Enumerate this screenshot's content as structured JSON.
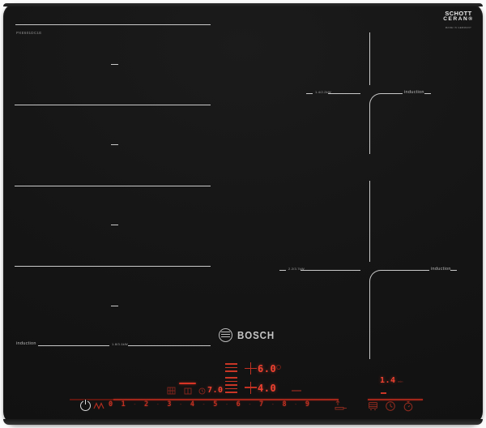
{
  "surface": {
    "model_number": "PXE601DC1E",
    "glass_logo": {
      "line1": "SCHOTT",
      "line2": "CERAN®",
      "subline": "MADE IN GERMANY"
    },
    "bosch_logo_text": "BOSCH"
  },
  "zones": {
    "flex_left": {
      "induction_label": "induction",
      "power_label": "1.8/3.1kW"
    },
    "back_right": {
      "induction_label": "induction",
      "power_label": "1.4/2.2kW"
    },
    "front_right": {
      "induction_label": "induction",
      "power_label": "2.2/3.7kW"
    }
  },
  "control_panel": {
    "power_levels": [
      "0",
      "1",
      "2",
      "3",
      "4",
      "5",
      "6",
      "7",
      "8",
      "9"
    ],
    "level_separator": "-",
    "displays": {
      "flex_rear_level": "6.0",
      "flex_front_level": "4.0",
      "aux_level": "7.0",
      "timer_value": "1.4",
      "timer_unit": "min"
    },
    "icons": [
      "standby-power-icon",
      "wipe-protection-icon",
      "pan-transfer-icon",
      "pot-icon",
      "clock-timer-icon",
      "stopwatch-icon",
      "grid-function-icon",
      "keep-warm-bar",
      "frame-function-icon",
      "mini-clock-icon"
    ]
  },
  "colors": {
    "led_bright": "#ee4130",
    "led_dim": "#7e241b",
    "zone_line": "#c9c9c9"
  }
}
